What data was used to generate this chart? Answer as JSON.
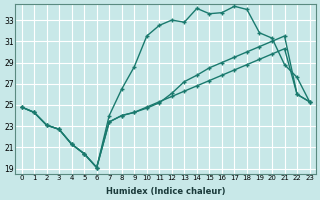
{
  "xlabel": "Humidex (Indice chaleur)",
  "ylabel": "",
  "background_color": "#c8e8e8",
  "grid_color": "#ffffff",
  "line_color": "#1a7a6e",
  "xlim": [
    -0.5,
    23.5
  ],
  "ylim": [
    18.5,
    34.5
  ],
  "xticks": [
    0,
    1,
    2,
    3,
    4,
    5,
    6,
    7,
    8,
    9,
    10,
    11,
    12,
    13,
    14,
    15,
    16,
    17,
    18,
    19,
    20,
    21,
    22,
    23
  ],
  "yticks": [
    19,
    21,
    23,
    25,
    27,
    29,
    31,
    33
  ],
  "series1_x": [
    0,
    1,
    2,
    3,
    4,
    5,
    6,
    7,
    8,
    9,
    10,
    11,
    12,
    13,
    14,
    15,
    16,
    17,
    18,
    19,
    20,
    21,
    22,
    23
  ],
  "series1_y": [
    24.8,
    24.3,
    23.1,
    22.7,
    21.3,
    20.4,
    19.1,
    23.4,
    24.0,
    24.3,
    24.7,
    25.2,
    26.1,
    27.2,
    27.8,
    28.5,
    29.0,
    29.5,
    30.0,
    30.5,
    31.0,
    31.5,
    26.0,
    25.3
  ],
  "series2_x": [
    0,
    1,
    2,
    3,
    4,
    5,
    6,
    7,
    8,
    9,
    10,
    11,
    12,
    13,
    14,
    15,
    16,
    17,
    18,
    19,
    20,
    21,
    22,
    23
  ],
  "series2_y": [
    24.8,
    24.3,
    23.1,
    22.7,
    21.3,
    20.4,
    19.1,
    24.0,
    26.5,
    28.6,
    31.5,
    32.5,
    33.0,
    32.8,
    34.1,
    33.6,
    33.7,
    34.3,
    34.0,
    31.8,
    31.3,
    28.8,
    27.6,
    25.3
  ],
  "series3_x": [
    0,
    1,
    2,
    3,
    4,
    5,
    6,
    7,
    8,
    9,
    10,
    11,
    12,
    13,
    14,
    15,
    16,
    17,
    18,
    19,
    20,
    21,
    22,
    23
  ],
  "series3_y": [
    24.8,
    24.3,
    23.1,
    22.7,
    21.3,
    20.4,
    19.1,
    23.4,
    24.0,
    24.3,
    24.8,
    25.3,
    25.8,
    26.3,
    26.8,
    27.3,
    27.8,
    28.3,
    28.8,
    29.3,
    29.8,
    30.3,
    26.0,
    25.3
  ]
}
